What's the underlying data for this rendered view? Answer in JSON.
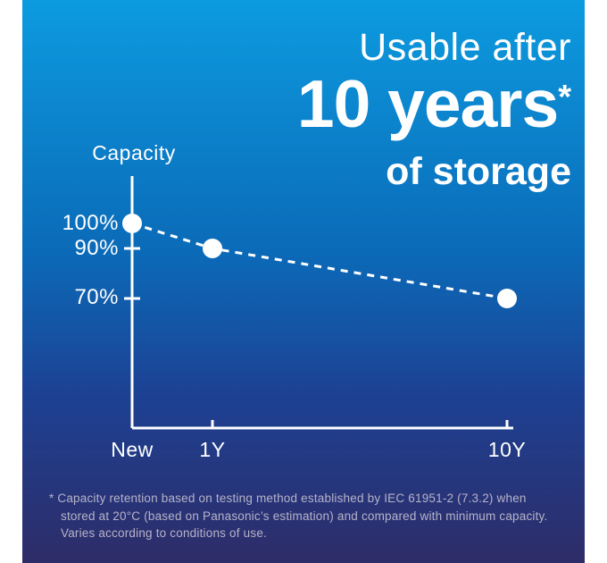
{
  "title": {
    "line1": "Usable after",
    "line2": "10 years",
    "asterisk": "*",
    "line3": "of storage"
  },
  "chart_data": {
    "type": "line",
    "categories": [
      "New",
      "1Y",
      "10Y"
    ],
    "values": [
      100,
      90,
      70
    ],
    "ylabel": "Capacity",
    "yticks": [
      {
        "value": 100,
        "label": "100%"
      },
      {
        "value": 90,
        "label": "90%"
      },
      {
        "value": 70,
        "label": "70%"
      }
    ],
    "line_style": "dashed",
    "marker": "circle",
    "grid": false,
    "legend": "none",
    "ylim_shown": [
      70,
      100
    ]
  },
  "footnote": "* Capacity retention based on testing method established by IEC 61951-2 (7.3.2) when stored at 20°C (based on Panasonic’s estimation) and compared with minimum capacity. Varies according to conditions of use.",
  "colors": {
    "gradient_top": "#0c9bdf",
    "gradient_mid": "#0b6ab8",
    "gradient_deep": "#1d4193",
    "gradient_bottom": "#2e2c68",
    "line": "#ffffff",
    "marker": "#ffffff",
    "text": "#ffffff",
    "footnote_text": "#b6b3c9",
    "margin": "#ffffff"
  }
}
